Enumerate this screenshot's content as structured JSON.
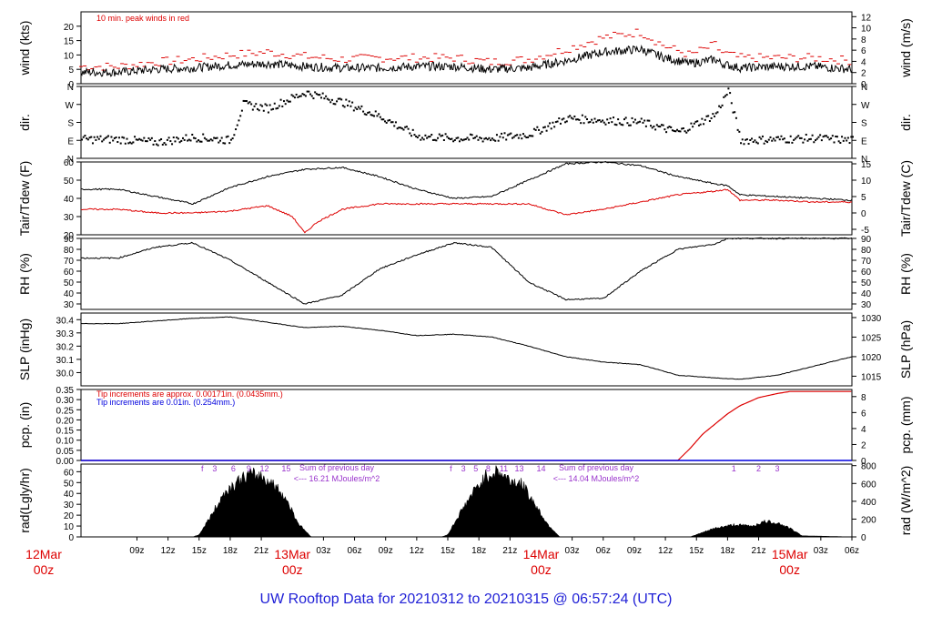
{
  "title": "UW Rooftop Data for 20210312  to  20210315 @ 06:57:24  (UTC)",
  "chart_data": [
    {
      "type": "line",
      "panel": "wind",
      "ylabel": "wind (kts)",
      "y2label": "wind (m/s)",
      "ylim": [
        0,
        25
      ],
      "yticks": [
        0,
        5,
        10,
        15,
        20
      ],
      "y2lim": [
        0,
        12.86
      ],
      "y2ticks": [
        0,
        2,
        4,
        6,
        8,
        10,
        12
      ],
      "annotations": [
        {
          "text": "10 min. peak winds in red",
          "color": "#dd0000"
        }
      ],
      "series": [
        {
          "name": "wind",
          "color": "#000000",
          "x": [
            0,
            6,
            12,
            18,
            24,
            30,
            36,
            42,
            48,
            54,
            60,
            66,
            72,
            78,
            84,
            88,
            92,
            96,
            97,
            100,
            106,
            112,
            118
          ],
          "values": [
            4,
            5,
            5.5,
            6.5,
            7,
            6,
            5.5,
            5.5,
            6,
            6,
            5,
            5.5,
            8,
            11,
            12,
            9,
            7,
            8.5,
            7,
            5.5,
            6,
            6,
            5
          ]
        },
        {
          "name": "10 min. peak winds",
          "color": "#dd0000",
          "x": [
            0,
            6,
            12,
            18,
            24,
            30,
            36,
            42,
            48,
            54,
            60,
            66,
            72,
            78,
            84,
            88,
            92,
            96,
            97,
            100,
            106,
            112,
            118
          ],
          "values": [
            6,
            7.5,
            8.5,
            10,
            11,
            9.5,
            8.5,
            9,
            9,
            9,
            7.5,
            8.5,
            12,
            16,
            18,
            13,
            10,
            13.5,
            11,
            9,
            9,
            9,
            8
          ]
        }
      ]
    },
    {
      "type": "scatter",
      "panel": "dir",
      "ylabel": "dir.",
      "y2label": "dir.",
      "ylim": [
        0,
        360
      ],
      "yticks": [
        "N",
        "E",
        "S",
        "W",
        "N"
      ],
      "series": [
        {
          "name": "dir",
          "color": "#000000",
          "x": [
            0,
            6,
            12,
            18,
            20,
            24,
            30,
            36,
            42,
            48,
            54,
            60,
            66,
            72,
            78,
            84,
            90,
            96,
            98,
            100,
            106,
            112,
            118
          ],
          "values": [
            95,
            80,
            105,
            90,
            270,
            250,
            330,
            280,
            210,
            110,
            100,
            100,
            120,
            200,
            190,
            180,
            130,
            220,
            340,
            90,
            95,
            100,
            90
          ]
        }
      ]
    },
    {
      "type": "line",
      "panel": "temperature",
      "ylabel": "Tair/Tdew (F)",
      "y2label": "Tair/Tdew (C)",
      "ylim": [
        20,
        60
      ],
      "yticks": [
        20,
        30,
        40,
        50,
        60
      ],
      "y2ticks": [
        -5,
        0,
        5,
        10,
        15
      ],
      "series": [
        {
          "name": "Tair",
          "color": "#000000",
          "x": [
            0,
            6,
            12,
            18,
            24,
            30,
            36,
            42,
            48,
            54,
            60,
            66,
            72,
            78,
            84,
            90,
            96,
            98,
            100,
            106,
            112,
            118
          ],
          "values": [
            45,
            41,
            37,
            46,
            52,
            56,
            57,
            52,
            45,
            40,
            41,
            50,
            59,
            60,
            58,
            52,
            48,
            47,
            42,
            41,
            40,
            39
          ]
        },
        {
          "name": "Tdew",
          "color": "#dd0000",
          "x": [
            0,
            6,
            12,
            18,
            24,
            28,
            30,
            32,
            36,
            42,
            48,
            54,
            60,
            66,
            72,
            78,
            84,
            90,
            96,
            98,
            100,
            106,
            112,
            118
          ],
          "values": [
            34,
            32,
            32,
            33,
            36,
            30,
            21,
            27,
            34,
            37,
            37,
            37,
            37,
            37,
            31,
            34,
            38,
            42,
            44,
            45,
            39,
            39,
            38,
            38
          ]
        }
      ]
    },
    {
      "type": "line",
      "panel": "rh",
      "ylabel": "RH (%)",
      "y2label": "RH (%)",
      "ylim": [
        25,
        90
      ],
      "yticks": [
        30,
        40,
        50,
        60,
        70,
        80,
        90
      ],
      "series": [
        {
          "name": "RH",
          "color": "#000000",
          "x": [
            0,
            6,
            12,
            18,
            24,
            30,
            36,
            42,
            48,
            54,
            60,
            66,
            72,
            78,
            84,
            90,
            96,
            98,
            100,
            106,
            112,
            118
          ],
          "values": [
            72,
            82,
            86,
            70,
            50,
            30,
            38,
            62,
            75,
            86,
            82,
            50,
            34,
            35,
            60,
            80,
            85,
            90,
            90,
            90,
            90,
            90
          ]
        }
      ]
    },
    {
      "type": "line",
      "panel": "slp",
      "ylabel": "SLP (inHg)",
      "y2label": "SLP (hPa)",
      "ylim": [
        29.9,
        30.45
      ],
      "yticks": [
        30.0,
        30.1,
        30.2,
        30.3,
        30.4
      ],
      "y2ticks": [
        1015,
        1020,
        1025,
        1030
      ],
      "series": [
        {
          "name": "SLP",
          "color": "#000000",
          "x": [
            0,
            6,
            12,
            18,
            24,
            30,
            36,
            42,
            48,
            54,
            60,
            66,
            72,
            78,
            84,
            90,
            96,
            100,
            106,
            112,
            118
          ],
          "values": [
            30.37,
            30.39,
            30.41,
            30.42,
            30.38,
            30.34,
            30.35,
            30.32,
            30.28,
            30.29,
            30.27,
            30.2,
            30.12,
            30.08,
            30.06,
            29.98,
            29.96,
            29.95,
            29.98,
            30.05,
            30.12
          ]
        }
      ]
    },
    {
      "type": "area",
      "panel": "pcp",
      "ylabel": "pcp. (in)",
      "y2label": "pcp. (mm)",
      "ylim": [
        0,
        0.35
      ],
      "yticks": [
        0.0,
        0.05,
        0.1,
        0.15,
        0.2,
        0.25,
        0.3,
        0.35
      ],
      "y2ticks": [
        0,
        2,
        4,
        6,
        8
      ],
      "annotations": [
        {
          "text": "Tip increments are approx. 0.00171in. (0.0435mm.)",
          "color": "#dd0000"
        },
        {
          "text": "Tip increments are 0.01in. (0.254mm.)",
          "color": "#0000dd"
        }
      ],
      "series": [
        {
          "name": "pcp",
          "color": "#dd0000",
          "x": [
            0,
            90,
            92,
            94,
            96,
            98,
            100,
            103,
            106,
            108,
            112,
            118
          ],
          "values": [
            0,
            0,
            0.06,
            0.13,
            0.18,
            0.23,
            0.27,
            0.31,
            0.33,
            0.34,
            0.34,
            0.34
          ]
        }
      ]
    },
    {
      "type": "area",
      "panel": "rad",
      "ylabel": "rad(Lgly/hr)",
      "y2label": "rad (W/m^2)",
      "ylim": [
        0,
        67
      ],
      "yticks": [
        0,
        10,
        20,
        30,
        40,
        50,
        60
      ],
      "y2ticks": [
        0,
        200,
        400,
        600,
        800
      ],
      "annotations": [
        {
          "text": "Sum of previous day",
          "color": "#9933cc"
        },
        {
          "text": "<--- 16.21 MJoules/m^2",
          "color": "#9933cc"
        },
        {
          "text": "Sum of previous day",
          "color": "#9933cc"
        },
        {
          "text": "<--- 14.04 MJoules/m^2",
          "color": "#9933cc"
        }
      ],
      "hour_marks": [
        {
          "label": "f",
          "x": 13.5
        },
        {
          "label": "3",
          "x": 15.5
        },
        {
          "label": "6",
          "x": 18.5
        },
        {
          "label": "9",
          "x": 21
        },
        {
          "label": "12",
          "x": 23.5
        },
        {
          "label": "15",
          "x": 27
        },
        {
          "label": "f",
          "x": 53.5
        },
        {
          "label": "3",
          "x": 55.5
        },
        {
          "label": "5",
          "x": 57.5
        },
        {
          "label": "8",
          "x": 59.5
        },
        {
          "label": "11",
          "x": 62
        },
        {
          "label": "13",
          "x": 64.5
        },
        {
          "label": "14",
          "x": 68
        },
        {
          "label": "1",
          "x": 99
        },
        {
          "label": "2",
          "x": 103
        },
        {
          "label": "3",
          "x": 106
        }
      ],
      "series": [
        {
          "name": "radiation",
          "color": "#000000",
          "x": [
            0,
            12,
            13,
            15,
            17,
            19,
            21,
            23,
            25,
            27,
            29,
            31,
            52,
            53,
            55,
            57,
            59,
            61,
            63,
            65,
            67,
            69,
            71,
            92,
            93,
            96,
            99,
            102,
            104,
            106,
            108,
            110,
            118
          ],
          "values": [
            0,
            0,
            2,
            20,
            40,
            50,
            57,
            56,
            48,
            35,
            12,
            0,
            0,
            2,
            22,
            40,
            55,
            60,
            52,
            48,
            30,
            12,
            0,
            0,
            2,
            8,
            11,
            10,
            14,
            13,
            8,
            1,
            0
          ]
        }
      ]
    }
  ],
  "xaxis": {
    "hour_labels": [
      "09z",
      "12z",
      "15z",
      "18z",
      "21z",
      "03z",
      "06z",
      "09z",
      "12z",
      "15z",
      "18z",
      "21z",
      "03z",
      "06z",
      "09z",
      "12z",
      "15z",
      "18z",
      "21z",
      "03z",
      "06z"
    ],
    "hour_positions": [
      3,
      8,
      13,
      18,
      23,
      33,
      38,
      43,
      48,
      53,
      58,
      63,
      73,
      78,
      83,
      88,
      93,
      98,
      103,
      113,
      118
    ],
    "day_labels": [
      {
        "line1": "12Mar",
        "line2": "00z",
        "x": -12
      },
      {
        "line1": "13Mar",
        "line2": "00z",
        "x": 28
      },
      {
        "line1": "14Mar",
        "line2": "00z",
        "x": 68
      },
      {
        "line1": "15Mar",
        "line2": "00z",
        "x": 108
      }
    ],
    "day_label_color": "#dd0000"
  }
}
